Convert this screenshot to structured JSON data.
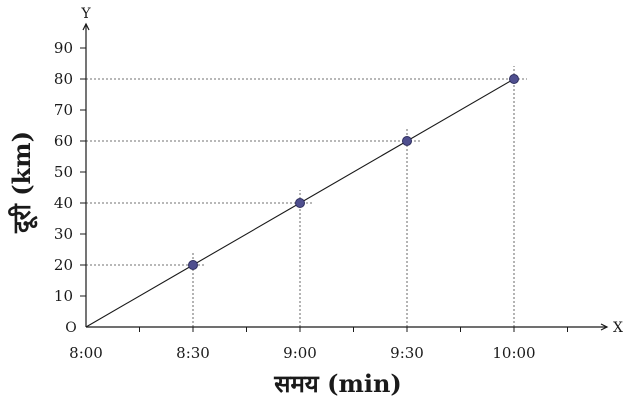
{
  "chart_data": {
    "type": "line",
    "title": "",
    "xlabel": "समय (min)",
    "ylabel": "दूरी (km)",
    "x_axis_letter": "X",
    "y_axis_letter": "Y",
    "origin_label": "O",
    "x_ticks": [
      "8:00",
      "8:30",
      "9:00",
      "9:30",
      "10:00"
    ],
    "y_ticks": [
      0,
      10,
      20,
      30,
      40,
      50,
      60,
      70,
      80,
      90
    ],
    "ylim": [
      0,
      90
    ],
    "series": [
      {
        "x": [
          "8:00",
          "8:30",
          "9:00",
          "9:30",
          "10:00"
        ],
        "y": [
          0,
          20,
          40,
          60,
          80
        ]
      }
    ],
    "grid": false
  }
}
